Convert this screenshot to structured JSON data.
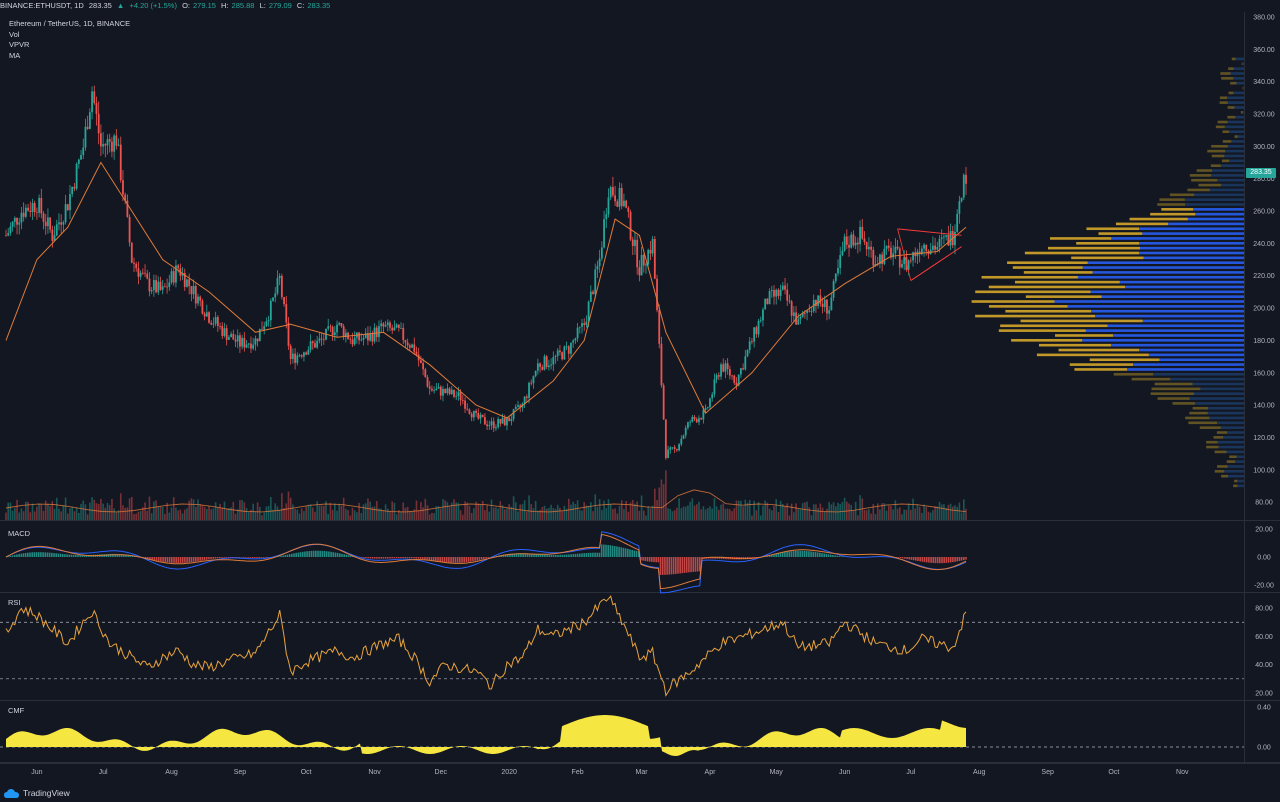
{
  "header": {
    "symbol": "BINANCE:ETHUSDT, 1D",
    "last": "283.35",
    "change": "+4.20 (+1.5%)",
    "o_label": "O:",
    "o": "279.15",
    "h_label": "H:",
    "h": "285.88",
    "l_label": "L:",
    "l": "279.09",
    "c_label": "C:",
    "c": "283.35"
  },
  "legend": {
    "title": "Ethereum / TetherUS, 1D, BINANCE",
    "items": [
      "Vol",
      "VPVR",
      "MA"
    ]
  },
  "panes": {
    "macd": "MACD",
    "rsi": "RSI",
    "cmf": "CMF"
  },
  "price_tag": "283.35",
  "footer": {
    "brand": "TradingView"
  },
  "colors": {
    "up": "#26a69a",
    "down": "#ef5350",
    "ma": "#e07b39",
    "vpvr_blue": "#2962ff",
    "vpvr_gold": "#d6a72a",
    "rsi": "#e8a33d",
    "cmf": "#f5e642",
    "trend": "#ff3b3b"
  },
  "chart_data": [
    {
      "type": "candlestick",
      "title": "Ethereum / TetherUS, 1D, BINANCE",
      "x_ticks": [
        "Jun",
        "Jul",
        "Aug",
        "Sep",
        "Oct",
        "Nov",
        "Dec",
        "2020",
        "Feb",
        "Mar",
        "Apr",
        "May",
        "Jun",
        "Jul",
        "Aug",
        "Sep",
        "Oct",
        "Nov"
      ],
      "y_ticks": [
        "380.00",
        "360.00",
        "340.00",
        "320.00",
        "300.00",
        "280.00",
        "260.00",
        "240.00",
        "220.00",
        "200.00",
        "180.00",
        "160.00",
        "140.00",
        "120.00",
        "100.00",
        "80.00"
      ],
      "ylim": [
        80,
        380
      ],
      "close_path": [
        [
          "2019-05-18",
          245
        ],
        [
          "2019-05-25",
          260
        ],
        [
          "2019-06-01",
          265
        ],
        [
          "2019-06-08",
          245
        ],
        [
          "2019-06-15",
          265
        ],
        [
          "2019-06-22",
          300
        ],
        [
          "2019-06-26",
          335
        ],
        [
          "2019-06-30",
          300
        ],
        [
          "2019-07-07",
          305
        ],
        [
          "2019-07-14",
          230
        ],
        [
          "2019-07-21",
          215
        ],
        [
          "2019-07-28",
          210
        ],
        [
          "2019-08-04",
          225
        ],
        [
          "2019-08-11",
          210
        ],
        [
          "2019-08-18",
          195
        ],
        [
          "2019-08-25",
          185
        ],
        [
          "2019-09-01",
          178
        ],
        [
          "2019-09-08",
          180
        ],
        [
          "2019-09-15",
          200
        ],
        [
          "2019-09-19",
          218
        ],
        [
          "2019-09-24",
          168
        ],
        [
          "2019-10-01",
          175
        ],
        [
          "2019-10-08",
          180
        ],
        [
          "2019-10-15",
          190
        ],
        [
          "2019-10-22",
          180
        ],
        [
          "2019-10-29",
          182
        ],
        [
          "2019-11-05",
          188
        ],
        [
          "2019-11-12",
          185
        ],
        [
          "2019-11-19",
          175
        ],
        [
          "2019-11-26",
          150
        ],
        [
          "2019-12-03",
          148
        ],
        [
          "2019-12-10",
          145
        ],
        [
          "2019-12-17",
          132
        ],
        [
          "2019-12-24",
          128
        ],
        [
          "2019-12-31",
          130
        ],
        [
          "2020-01-07",
          140
        ],
        [
          "2020-01-14",
          165
        ],
        [
          "2020-01-21",
          168
        ],
        [
          "2020-01-28",
          175
        ],
        [
          "2020-02-04",
          190
        ],
        [
          "2020-02-11",
          230
        ],
        [
          "2020-02-15",
          275
        ],
        [
          "2020-02-22",
          265
        ],
        [
          "2020-02-29",
          225
        ],
        [
          "2020-03-06",
          240
        ],
        [
          "2020-03-12",
          110
        ],
        [
          "2020-03-16",
          112
        ],
        [
          "2020-03-23",
          130
        ],
        [
          "2020-03-30",
          135
        ],
        [
          "2020-04-06",
          165
        ],
        [
          "2020-04-13",
          155
        ],
        [
          "2020-04-20",
          180
        ],
        [
          "2020-04-27",
          205
        ],
        [
          "2020-05-04",
          210
        ],
        [
          "2020-05-11",
          190
        ],
        [
          "2020-05-18",
          205
        ],
        [
          "2020-05-25",
          200
        ],
        [
          "2020-06-01",
          240
        ],
        [
          "2020-06-08",
          245
        ],
        [
          "2020-06-15",
          230
        ],
        [
          "2020-06-22",
          235
        ],
        [
          "2020-06-29",
          227
        ],
        [
          "2020-07-06",
          240
        ],
        [
          "2020-07-13",
          238
        ],
        [
          "2020-07-20",
          245
        ],
        [
          "2020-07-23",
          270
        ],
        [
          "2020-07-26",
          283.35
        ]
      ],
      "ma_path": [
        [
          "2019-05-18",
          180
        ],
        [
          "2019-06-01",
          230
        ],
        [
          "2019-06-15",
          250
        ],
        [
          "2019-06-30",
          290
        ],
        [
          "2019-07-14",
          260
        ],
        [
          "2019-07-28",
          230
        ],
        [
          "2019-08-18",
          210
        ],
        [
          "2019-09-08",
          185
        ],
        [
          "2019-09-24",
          190
        ],
        [
          "2019-10-15",
          182
        ],
        [
          "2019-11-05",
          185
        ],
        [
          "2019-11-26",
          165
        ],
        [
          "2019-12-17",
          140
        ],
        [
          "2019-12-31",
          132
        ],
        [
          "2020-01-21",
          155
        ],
        [
          "2020-02-04",
          180
        ],
        [
          "2020-02-18",
          255
        ],
        [
          "2020-02-29",
          245
        ],
        [
          "2020-03-12",
          185
        ],
        [
          "2020-03-30",
          135
        ],
        [
          "2020-04-20",
          160
        ],
        [
          "2020-05-11",
          195
        ],
        [
          "2020-06-01",
          215
        ],
        [
          "2020-06-22",
          232
        ],
        [
          "2020-07-13",
          235
        ],
        [
          "2020-07-26",
          250
        ]
      ],
      "triangle": [
        [
          "2020-06-25",
          249
        ],
        [
          "2020-07-24",
          245
        ],
        [
          "2020-07-01",
          217
        ],
        [
          "2020-07-24",
          238
        ]
      ]
    },
    {
      "type": "histogram",
      "title": "MACD",
      "y_ticks": [
        "20.00",
        "0.00",
        "-20.00"
      ],
      "ylim": [
        -25,
        25
      ]
    },
    {
      "type": "line",
      "title": "RSI",
      "y_ticks": [
        "80.00",
        "60.00",
        "40.00",
        "20.00"
      ],
      "ylim": [
        15,
        90
      ],
      "bands": [
        70,
        30
      ],
      "values_path": [
        [
          "2019-05-18",
          62
        ],
        [
          "2019-05-25",
          80
        ],
        [
          "2019-06-01",
          75
        ],
        [
          "2019-06-08",
          65
        ],
        [
          "2019-06-15",
          55
        ],
        [
          "2019-06-22",
          70
        ],
        [
          "2019-06-26",
          78
        ],
        [
          "2019-07-04",
          55
        ],
        [
          "2019-07-14",
          45
        ],
        [
          "2019-07-21",
          38
        ],
        [
          "2019-07-28",
          45
        ],
        [
          "2019-08-04",
          50
        ],
        [
          "2019-08-11",
          40
        ],
        [
          "2019-08-18",
          38
        ],
        [
          "2019-08-25",
          42
        ],
        [
          "2019-09-01",
          45
        ],
        [
          "2019-09-08",
          48
        ],
        [
          "2019-09-19",
          75
        ],
        [
          "2019-09-24",
          35
        ],
        [
          "2019-10-01",
          42
        ],
        [
          "2019-10-15",
          50
        ],
        [
          "2019-10-22",
          45
        ],
        [
          "2019-11-05",
          55
        ],
        [
          "2019-11-12",
          58
        ],
        [
          "2019-11-19",
          45
        ],
        [
          "2019-11-26",
          28
        ],
        [
          "2019-12-03",
          40
        ],
        [
          "2019-12-17",
          35
        ],
        [
          "2019-12-24",
          25
        ],
        [
          "2019-12-31",
          40
        ],
        [
          "2020-01-07",
          45
        ],
        [
          "2020-01-14",
          65
        ],
        [
          "2020-01-21",
          60
        ],
        [
          "2020-02-04",
          70
        ],
        [
          "2020-02-15",
          88
        ],
        [
          "2020-02-22",
          68
        ],
        [
          "2020-02-29",
          45
        ],
        [
          "2020-03-06",
          48
        ],
        [
          "2020-03-12",
          22
        ],
        [
          "2020-03-23",
          35
        ],
        [
          "2020-04-06",
          55
        ],
        [
          "2020-04-20",
          62
        ],
        [
          "2020-05-04",
          70
        ],
        [
          "2020-05-11",
          52
        ],
        [
          "2020-05-25",
          55
        ],
        [
          "2020-06-01",
          70
        ],
        [
          "2020-06-15",
          55
        ],
        [
          "2020-06-29",
          50
        ],
        [
          "2020-07-06",
          58
        ],
        [
          "2020-07-20",
          52
        ],
        [
          "2020-07-26",
          76
        ]
      ]
    },
    {
      "type": "area",
      "title": "CMF",
      "y_ticks": [
        "0.40",
        "0.00"
      ],
      "ylim": [
        -0.15,
        0.45
      ]
    }
  ]
}
